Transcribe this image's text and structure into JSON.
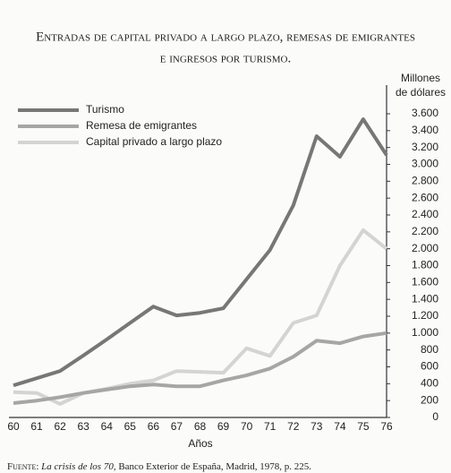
{
  "chart_data": {
    "type": "line",
    "title_line1": "Entradas de capital privado a largo plazo, remesas de emigrantes",
    "title_line2": "e ingresos por turismo.",
    "y_label_line1": "Millones",
    "y_label_line2": "de dólares",
    "x_label": "Años",
    "categories": [
      "60",
      "61",
      "62",
      "63",
      "64",
      "65",
      "66",
      "67",
      "68",
      "69",
      "70",
      "71",
      "72",
      "73",
      "74",
      "75",
      "76"
    ],
    "series": [
      {
        "name": "Turismo",
        "color": "#777777",
        "values": [
          380,
          465,
          550,
          735,
          925,
          1120,
          1315,
          1210,
          1240,
          1295,
          1640,
          1985,
          2515,
          3335,
          3090,
          3535,
          3110
        ]
      },
      {
        "name": "Remesa de emigrantes",
        "color": "#a6a6a6",
        "values": [
          170,
          200,
          240,
          290,
          330,
          370,
          390,
          370,
          370,
          440,
          500,
          580,
          720,
          910,
          880,
          960,
          1000
        ]
      },
      {
        "name": "Capital privado a largo plazo",
        "color": "#d4d4d4",
        "values": [
          300,
          290,
          160,
          290,
          340,
          400,
          440,
          550,
          540,
          530,
          820,
          730,
          1120,
          1210,
          1800,
          2220,
          2000
        ]
      }
    ],
    "ylim": [
      0,
      3600
    ],
    "yticks": [
      0,
      200,
      400,
      600,
      800,
      {
        "value": 1000,
        "label": "1.000"
      },
      {
        "value": 1200,
        "label": "1.200"
      },
      {
        "value": 1400,
        "label": "1.400"
      },
      {
        "value": 1600,
        "label": "1.600"
      },
      {
        "value": 1800,
        "label": "1.800"
      },
      {
        "value": 2000,
        "label": "2.000"
      },
      {
        "value": 2200,
        "label": "2.200"
      },
      {
        "value": 2400,
        "label": "2.400"
      },
      {
        "value": 2600,
        "label": "2.600"
      },
      {
        "value": 2800,
        "label": "2.800"
      },
      {
        "value": 3000,
        "label": "3.000"
      },
      {
        "value": 3200,
        "label": "3.200"
      },
      {
        "value": 3400,
        "label": "3.400"
      },
      {
        "value": 3600,
        "label": "3.600"
      }
    ],
    "legend": "top-left",
    "source": {
      "label": "Fuente:",
      "title": "La crisis de los 70,",
      "rest": "Banco Exterior de España, Madrid, 1978, p. 225."
    }
  }
}
